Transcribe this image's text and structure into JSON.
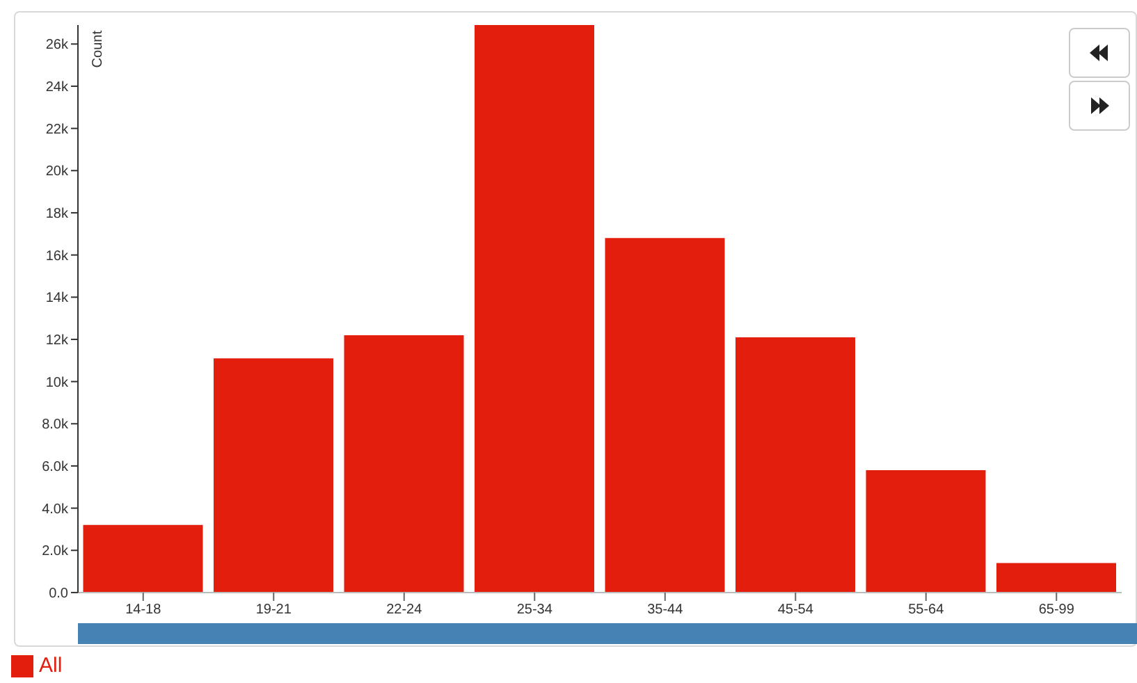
{
  "chart_data": {
    "type": "bar",
    "ylabel": "Count",
    "categories": [
      "14-18",
      "19-21",
      "22-24",
      "25-34",
      "35-44",
      "45-54",
      "55-64",
      "65-99"
    ],
    "series": [
      {
        "name": "All",
        "color": "#e41e0c",
        "values": [
          3200,
          11100,
          12200,
          26900,
          16800,
          12100,
          5800,
          1400
        ]
      }
    ],
    "ylim": [
      0,
      26900
    ],
    "yticks": [
      {
        "value": 0,
        "label": "0.0"
      },
      {
        "value": 2000,
        "label": "2.0k"
      },
      {
        "value": 4000,
        "label": "4.0k"
      },
      {
        "value": 6000,
        "label": "6.0k"
      },
      {
        "value": 8000,
        "label": "8.0k"
      },
      {
        "value": 10000,
        "label": "10k"
      },
      {
        "value": 12000,
        "label": "12k"
      },
      {
        "value": 14000,
        "label": "14k"
      },
      {
        "value": 16000,
        "label": "16k"
      },
      {
        "value": 18000,
        "label": "18k"
      },
      {
        "value": 20000,
        "label": "20k"
      },
      {
        "value": 22000,
        "label": "22k"
      },
      {
        "value": 24000,
        "label": "24k"
      },
      {
        "value": 26000,
        "label": "26k"
      }
    ],
    "grid": false,
    "legend": "bottom left"
  }
}
